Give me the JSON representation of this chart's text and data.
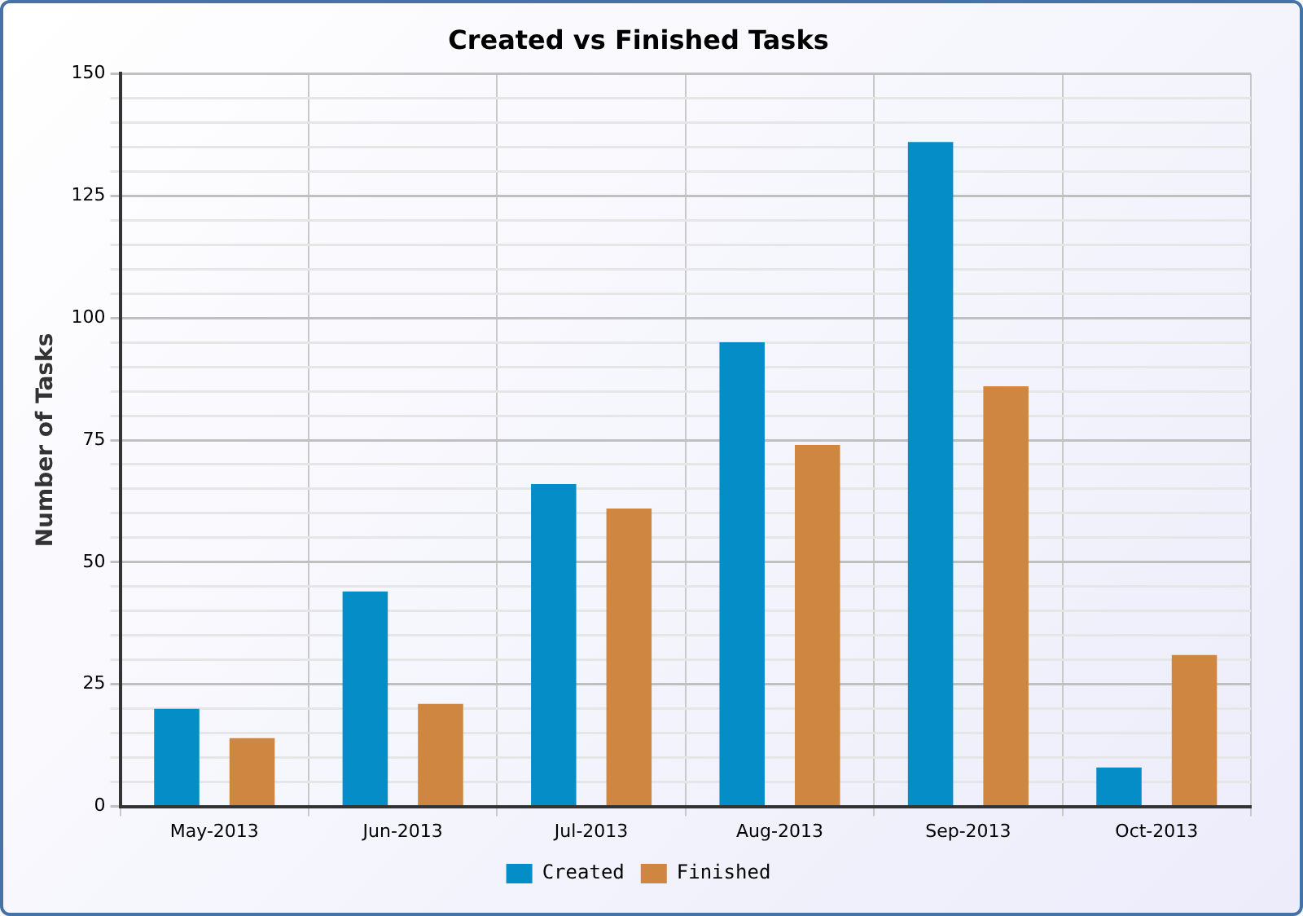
{
  "chart_data": {
    "type": "bar",
    "title": "Created vs Finished Tasks",
    "ylabel": "Number of Tasks",
    "categories": [
      "May-2013",
      "Jun-2013",
      "Jul-2013",
      "Aug-2013",
      "Sep-2013",
      "Oct-2013"
    ],
    "series": [
      {
        "name": "Created",
        "color": "#058dc7",
        "values": [
          20,
          44,
          66,
          95,
          136,
          8
        ]
      },
      {
        "name": "Finished",
        "color": "#ce8641",
        "values": [
          14,
          21,
          61,
          74,
          86,
          31
        ]
      }
    ],
    "ylim": [
      0,
      150
    ],
    "yticks": [
      0,
      {
        "value": 5,
        "label": null
      },
      {
        "value": 10,
        "label": null
      },
      {
        "value": 15,
        "label": null
      },
      {
        "value": 20,
        "label": null
      },
      25,
      {
        "value": 30,
        "label": null
      },
      {
        "value": 35,
        "label": null
      },
      {
        "value": 40,
        "label": null
      },
      {
        "value": 45,
        "label": null
      },
      50,
      {
        "value": 55,
        "label": null
      },
      {
        "value": 60,
        "label": null
      },
      {
        "value": 65,
        "label": null
      },
      {
        "value": 70,
        "label": null
      },
      75,
      {
        "value": 80,
        "label": null
      },
      {
        "value": 85,
        "label": null
      },
      {
        "value": 90,
        "label": null
      },
      {
        "value": 95,
        "label": null
      },
      100,
      {
        "value": 105,
        "label": null
      },
      {
        "value": 110,
        "label": null
      },
      {
        "value": 115,
        "label": null
      },
      {
        "value": 120,
        "label": null
      },
      125,
      {
        "value": 130,
        "label": null
      },
      {
        "value": 135,
        "label": null
      },
      {
        "value": 140,
        "label": null
      },
      {
        "value": 145,
        "label": null
      },
      150
    ],
    "grid": true,
    "legend": "bottom"
  }
}
